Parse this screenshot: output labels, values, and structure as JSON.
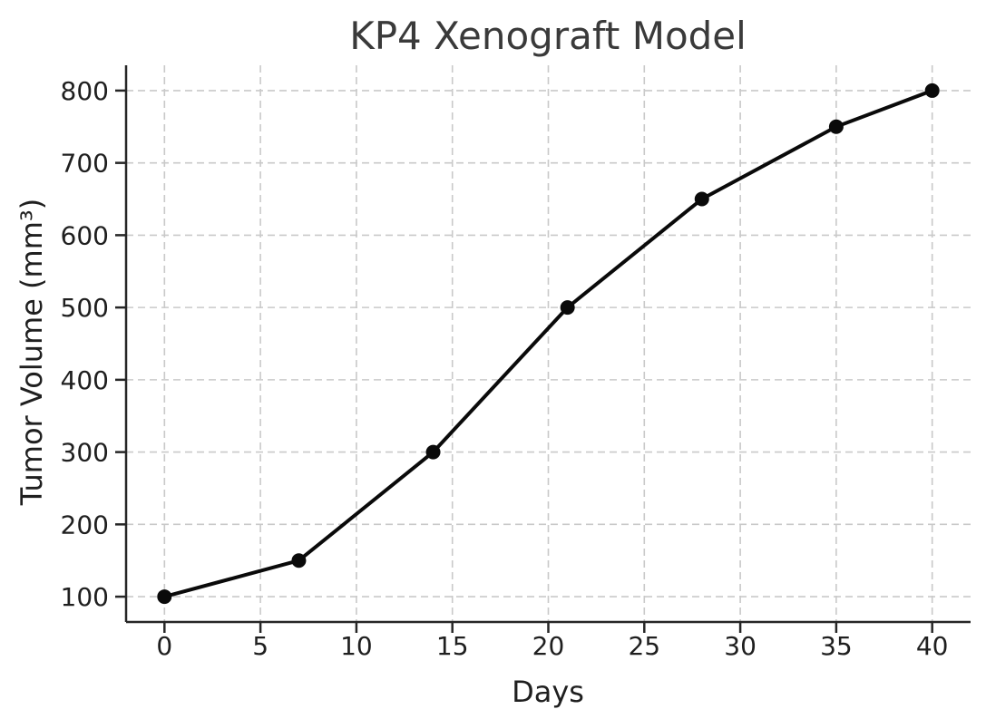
{
  "chart_data": {
    "type": "line",
    "title": "KP4 Xenograft Model",
    "xlabel": "Days",
    "ylabel": "Tumor Volume (mm³)",
    "series": [
      {
        "name": "Tumor Volume",
        "x": [
          0,
          7,
          14,
          21,
          28,
          35,
          40
        ],
        "y": [
          100,
          150,
          300,
          500,
          650,
          750,
          800
        ]
      }
    ],
    "x_ticks": [
      0,
      5,
      10,
      15,
      20,
      25,
      30,
      35,
      40
    ],
    "y_ticks": [
      100,
      200,
      300,
      400,
      500,
      600,
      700,
      800
    ],
    "xlim": [
      -2,
      42
    ],
    "ylim": [
      65,
      835
    ],
    "grid": true,
    "grid_style": "dashed",
    "legend": false,
    "marker": "circle",
    "colors": {
      "line": "#0a0a0a",
      "marker": "#0a0a0a",
      "grid": "#c9c9c9",
      "spine": "#262626",
      "title": "#3a3a3a",
      "tick_text": "#1f1f1f"
    }
  }
}
